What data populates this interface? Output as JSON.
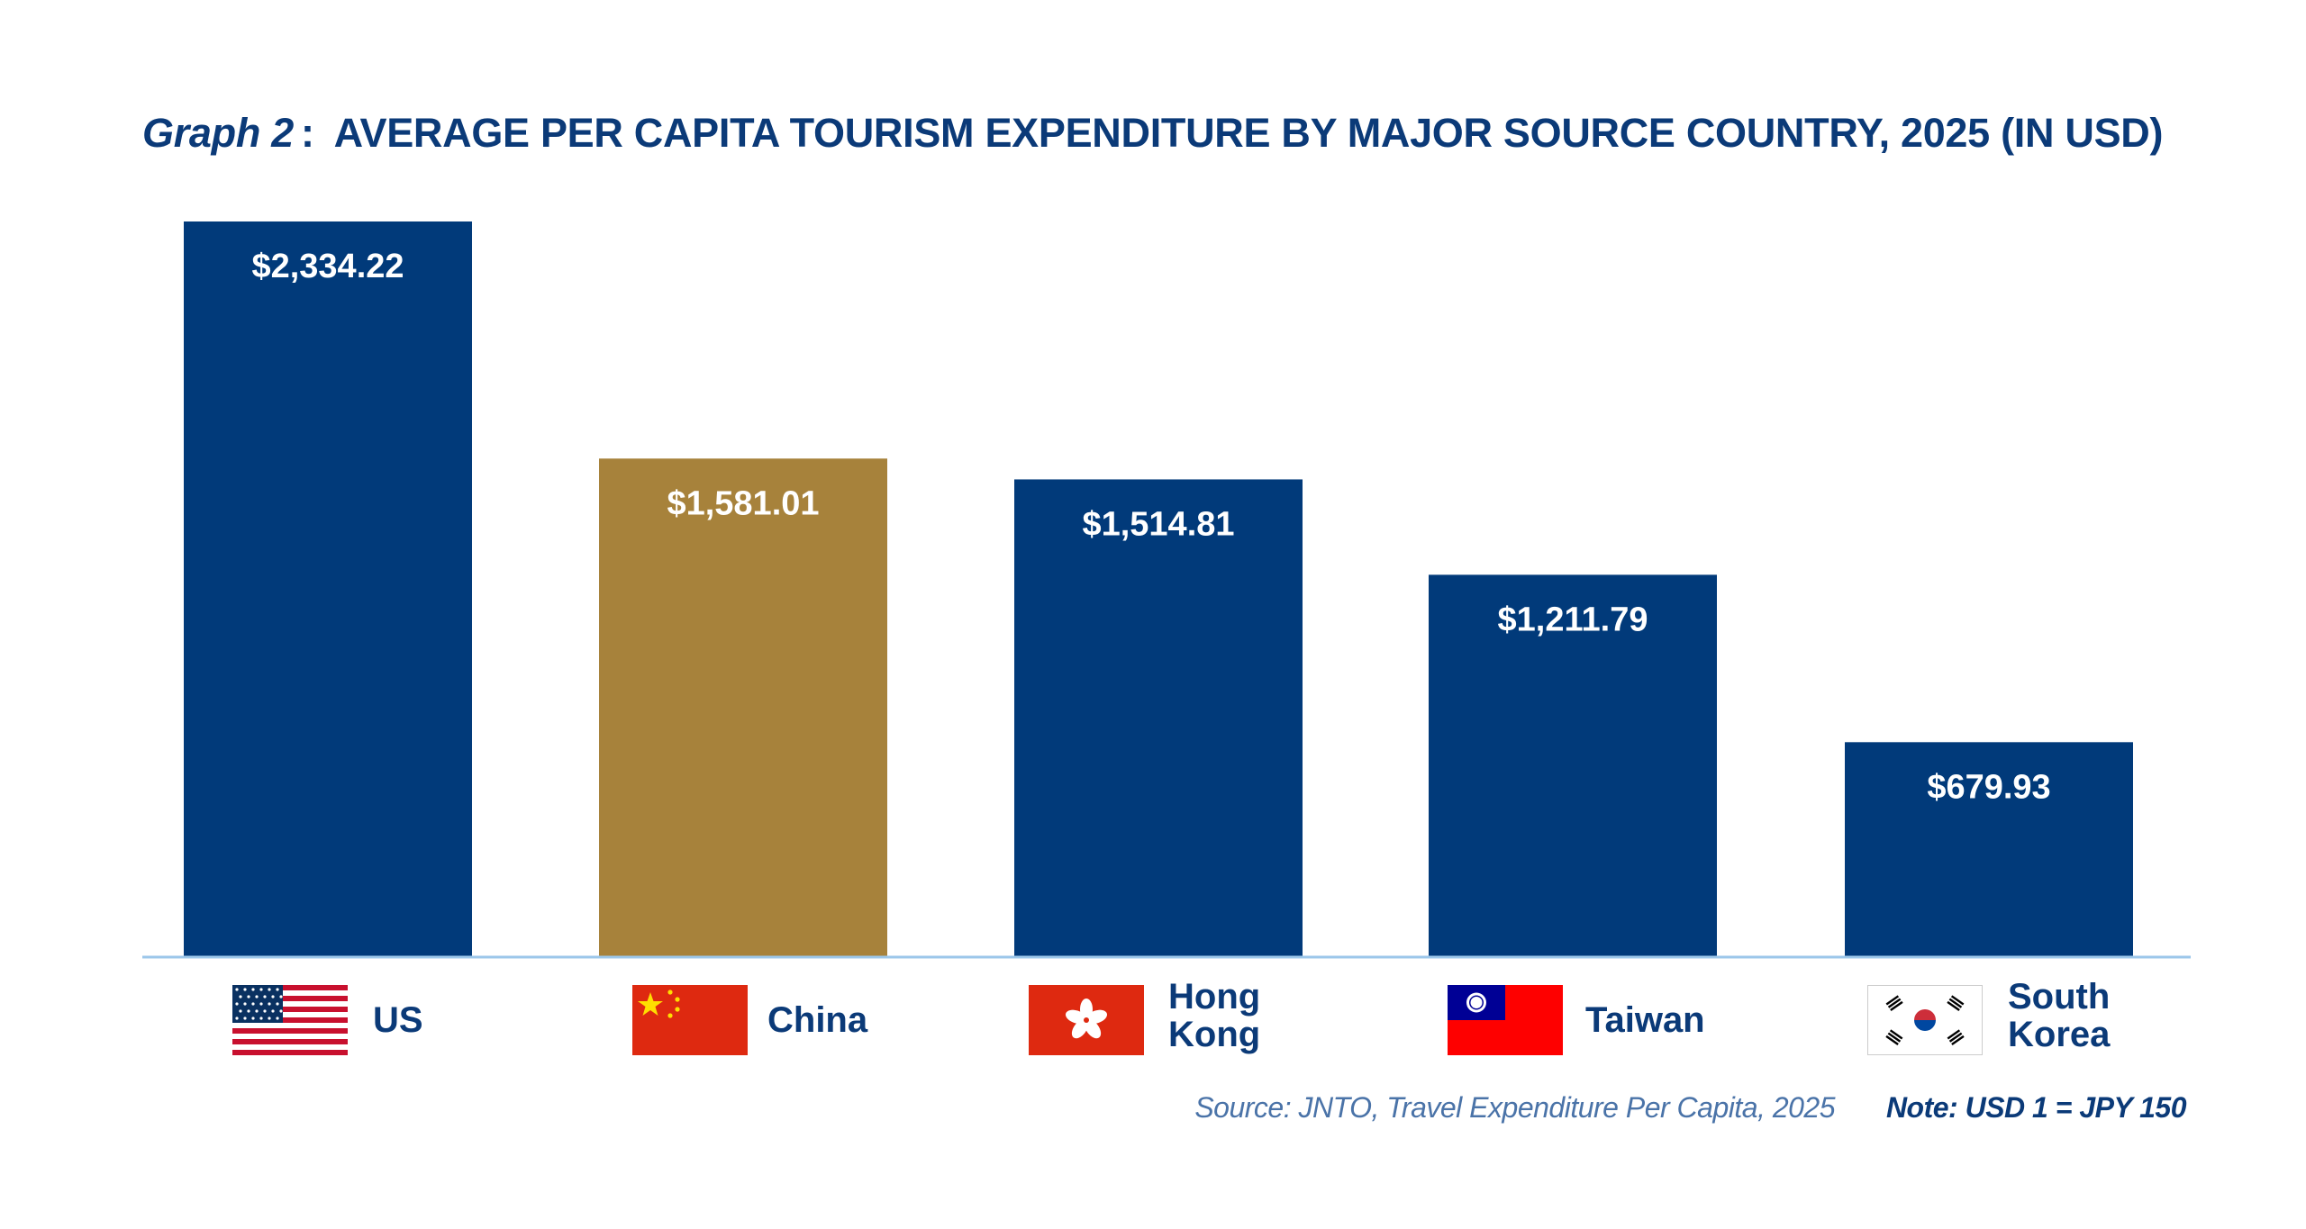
{
  "chart_data": {
    "type": "bar",
    "title_prefix": "Graph 2",
    "title_separator": ":",
    "title": "AVERAGE PER CAPITA TOURISM EXPENDITURE BY MAJOR SOURCE COUNTRY, 2025 (IN USD)",
    "categories": [
      "US",
      "China",
      "Hong Kong",
      "Taiwan",
      "South Korea"
    ],
    "values": [
      2334.22,
      1581.01,
      1514.81,
      1211.79,
      679.93
    ],
    "value_labels": [
      "$2,334.22",
      "$1,581.01",
      "$1,514.81",
      "$1,211.79",
      "$679.93"
    ],
    "highlight_index": 1,
    "ylim": [
      0,
      2334.22
    ],
    "grid": false,
    "legend": "none",
    "xlabel": "",
    "ylabel": ""
  },
  "colors": {
    "bar": "#013a7a",
    "highlight": "#a7823b",
    "baseline": "#9cc7ea",
    "title": "#0b3a78",
    "source": "#4a73a8"
  },
  "flags": [
    "us-flag-icon",
    "china-flag-icon",
    "hong-kong-flag-icon",
    "taiwan-flag-icon",
    "south-korea-flag-icon"
  ],
  "footer": {
    "source": "Source: JNTO, Travel Expenditure Per Capita, 2025",
    "note": "Note: USD 1 = JPY 150"
  }
}
